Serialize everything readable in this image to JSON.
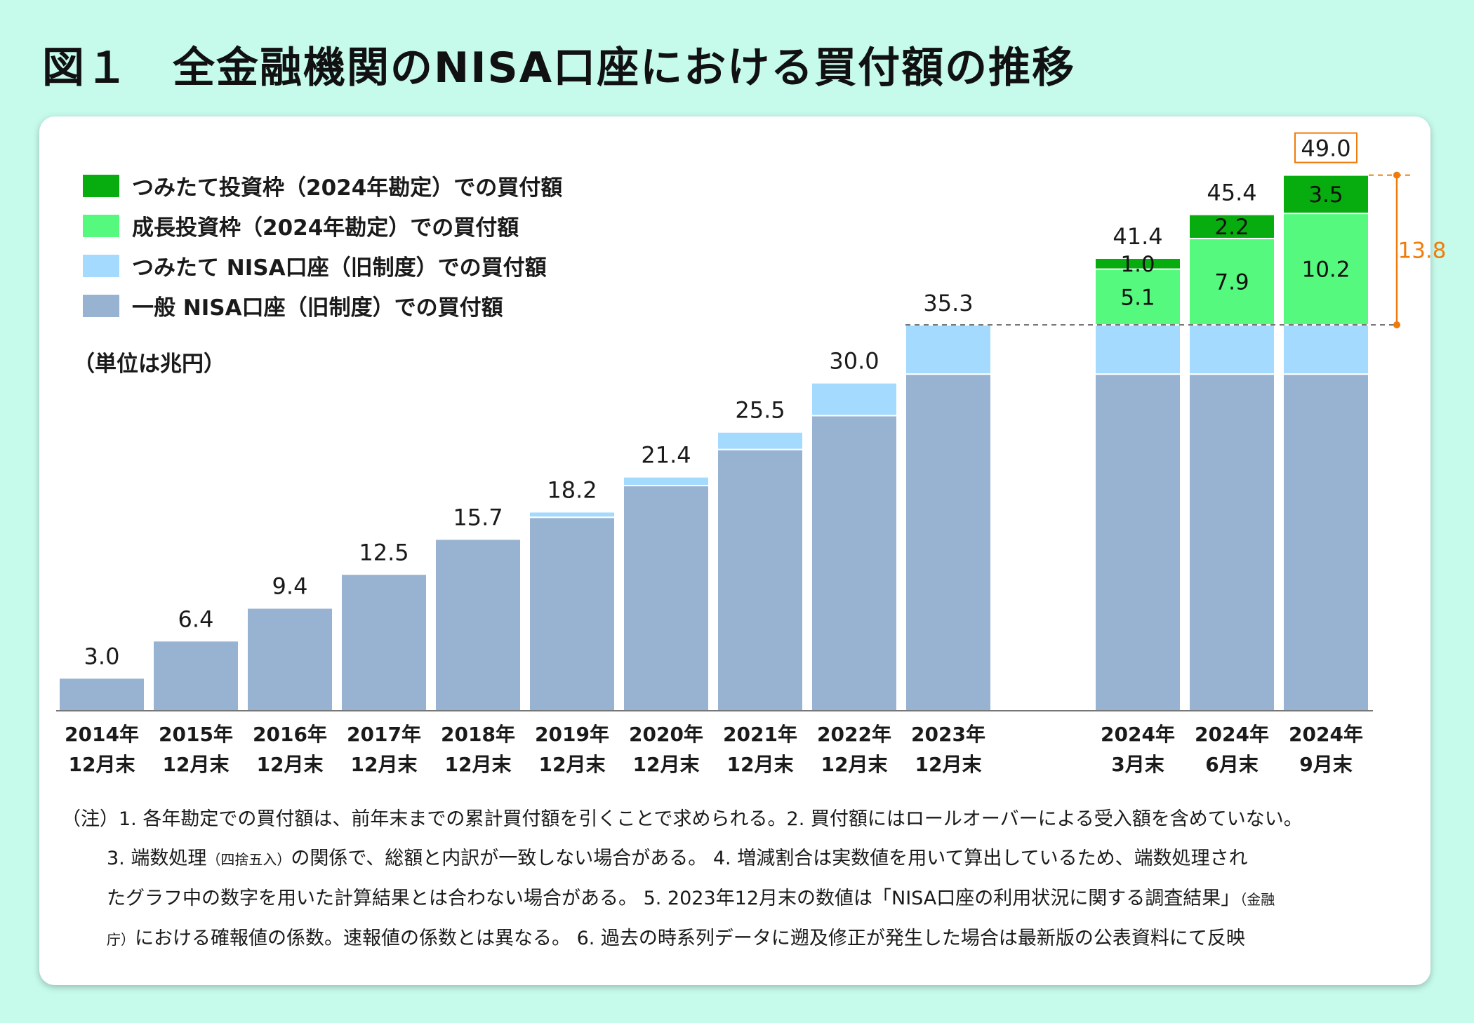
{
  "title": "図１　全金融機関のNISA口座における買付額の推移",
  "legend": [
    {
      "label": "つみたて投資枠（2024年勘定）での買付額",
      "color": "#07ad0f"
    },
    {
      "label": "成長投資枠（2024年勘定）での買付額",
      "color": "#54f97e"
    },
    {
      "label": "つみたて NISA口座（旧制度）での買付額",
      "color": "#a4dafd"
    },
    {
      "label": "一般 NISA口座（旧制度）での買付額",
      "color": "#97b3d1"
    }
  ],
  "unit_label": "（単位は兆円）",
  "increase_label": "13.8",
  "highlight_color": "#f07b0a",
  "chart_data": {
    "type": "bar",
    "stacked": true,
    "categories": [
      [
        "2014年",
        "12月末"
      ],
      [
        "2015年",
        "12月末"
      ],
      [
        "2016年",
        "12月末"
      ],
      [
        "2017年",
        "12月末"
      ],
      [
        "2018年",
        "12月末"
      ],
      [
        "2019年",
        "12月末"
      ],
      [
        "2020年",
        "12月末"
      ],
      [
        "2021年",
        "12月末"
      ],
      [
        "2022年",
        "12月末"
      ],
      [
        "2023年",
        "12月末"
      ],
      [
        "2024年",
        "3月末"
      ],
      [
        "2024年",
        "6月末"
      ],
      [
        "2024年",
        "9月末"
      ]
    ],
    "series": [
      {
        "name": "一般 NISA口座（旧制度）での買付額",
        "color": "#97b3d1",
        "values": [
          3.0,
          6.4,
          9.4,
          12.5,
          15.7,
          17.7,
          20.6,
          23.9,
          27.0,
          30.8,
          30.8,
          30.8,
          30.8
        ]
      },
      {
        "name": "つみたて NISA口座（旧制度）での買付額",
        "color": "#a4dafd",
        "values": [
          0,
          0,
          0,
          0,
          0,
          0.5,
          0.8,
          1.6,
          3.0,
          4.5,
          4.5,
          4.5,
          4.5
        ]
      },
      {
        "name": "成長投資枠（2024年勘定）での買付額",
        "color": "#54f97e",
        "values": [
          0,
          0,
          0,
          0,
          0,
          0,
          0,
          0,
          0,
          0,
          5.1,
          7.9,
          10.2
        ],
        "labels": [
          null,
          null,
          null,
          null,
          null,
          null,
          null,
          null,
          null,
          null,
          "5.1",
          "7.9",
          "10.2"
        ]
      },
      {
        "name": "つみたて投資枠（2024年勘定）での買付額",
        "color": "#07ad0f",
        "values": [
          0,
          0,
          0,
          0,
          0,
          0,
          0,
          0,
          0,
          0,
          1.0,
          2.2,
          3.5
        ],
        "labels": [
          null,
          null,
          null,
          null,
          null,
          null,
          null,
          null,
          null,
          null,
          "1.0",
          "2.2",
          "3.5"
        ]
      }
    ],
    "totals": [
      "3.0",
      "6.4",
      "9.4",
      "12.5",
      "15.7",
      "18.2",
      "21.4",
      "25.5",
      "30.0",
      "35.3",
      "41.4",
      "45.4",
      "49.0"
    ],
    "boxed_total_index": 12,
    "ylim": [
      0,
      50
    ],
    "grid": false,
    "legend_position": "top-left"
  },
  "notes": [
    [
      "（注）1. 各年勘定での買付額は、前年末までの累計買付額を引くことで求められる。2. 買付額にはロールオーバーによる受入額を含めていない。"
    ],
    [
      "3. 端数処理",
      "（四捨五入）",
      "の関係で、総額と内訳が一致しない場合がある。 4. 増減割合は実数値を用いて算出しているため、端数処理され"
    ],
    [
      "たグラフ中の数字を用いた計算結果とは合わない場合がある。 5. 2023年12月末の数値は「NISA口座の利用状況に関する調査結果」",
      "（金融"
    ],
    [
      "庁）",
      "における確報値の係数。速報値の係数とは異なる。 6. 過去の時系列データに遡及修正が発生した場合は最新版の公表資料にて反映"
    ]
  ]
}
